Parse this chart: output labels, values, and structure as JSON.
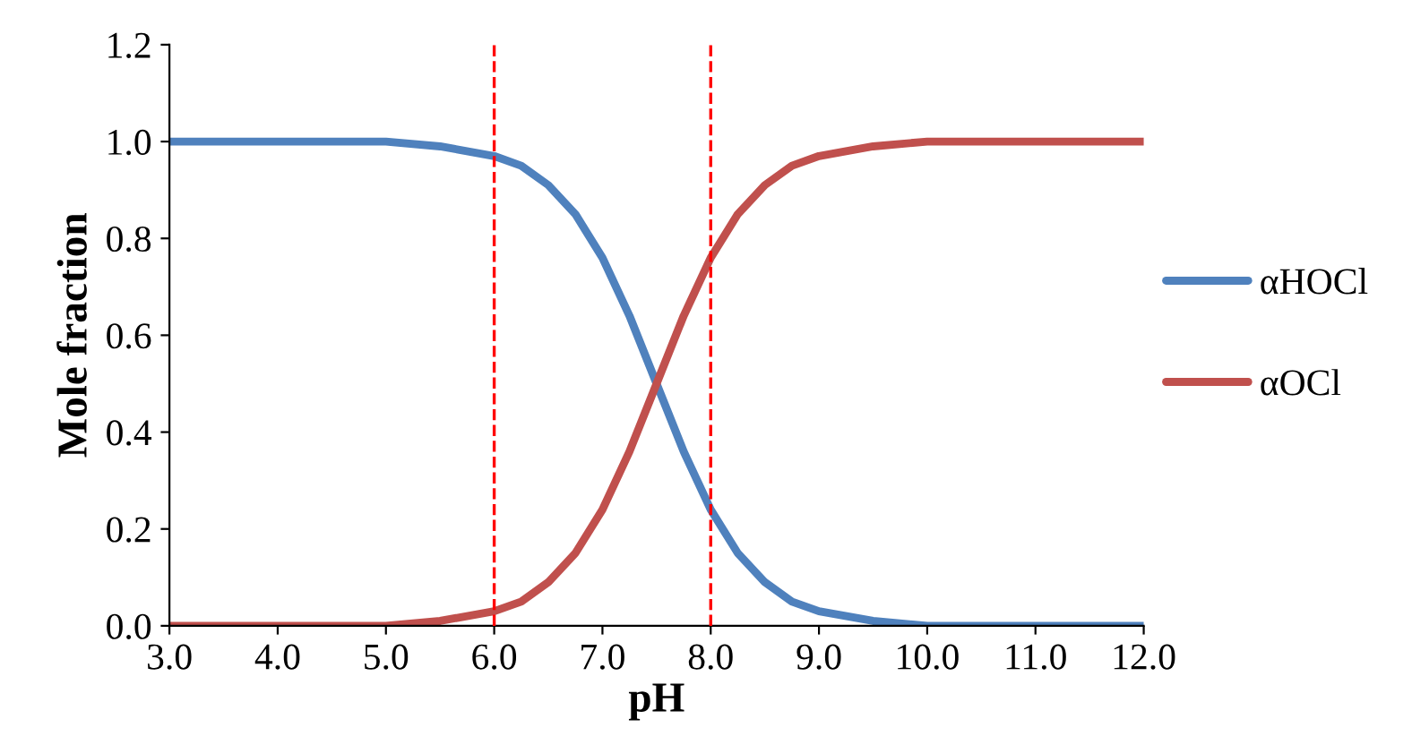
{
  "chart_data": {
    "type": "line",
    "xlabel": "pH",
    "ylabel": "Mole fraction",
    "x": [
      3,
      4,
      5,
      5.5,
      6,
      6.25,
      6.5,
      6.75,
      7,
      7.25,
      7.5,
      7.75,
      8,
      8.25,
      8.5,
      8.75,
      9,
      9.5,
      10,
      11,
      12
    ],
    "series": [
      {
        "name": "αHOCl",
        "color": "#4f81bd",
        "values": [
          1.0,
          1.0,
          1.0,
          0.99,
          0.97,
          0.95,
          0.91,
          0.85,
          0.76,
          0.64,
          0.5,
          0.36,
          0.24,
          0.15,
          0.09,
          0.05,
          0.03,
          0.01,
          0.0,
          0.0,
          0.0
        ]
      },
      {
        "name": "αOCl",
        "color": "#c0504d",
        "values": [
          0.0,
          0.0,
          0.0,
          0.01,
          0.03,
          0.05,
          0.09,
          0.15,
          0.24,
          0.36,
          0.5,
          0.64,
          0.76,
          0.85,
          0.91,
          0.95,
          0.97,
          0.99,
          1.0,
          1.0,
          1.0
        ]
      }
    ],
    "xlim": [
      3,
      12
    ],
    "ylim": [
      0,
      1.2
    ],
    "xticks": [
      {
        "value": 3,
        "label": "3.0"
      },
      {
        "value": 4,
        "label": "4.0"
      },
      {
        "value": 5,
        "label": "5.0"
      },
      {
        "value": 6,
        "label": "6.0"
      },
      {
        "value": 7,
        "label": "7.0"
      },
      {
        "value": 8,
        "label": "8.0"
      },
      {
        "value": 9,
        "label": "9.0"
      },
      {
        "value": 10,
        "label": "10.0"
      },
      {
        "value": 11,
        "label": "11.0"
      },
      {
        "value": 12,
        "label": "12.0"
      }
    ],
    "yticks": [
      {
        "value": 0,
        "label": "0.0"
      },
      {
        "value": 0.2,
        "label": "0.2"
      },
      {
        "value": 0.4,
        "label": "0.4"
      },
      {
        "value": 0.6,
        "label": "0.6"
      },
      {
        "value": 0.8,
        "label": "0.8"
      },
      {
        "value": 1.0,
        "label": "1.0"
      },
      {
        "value": 1.2,
        "label": "1.2"
      }
    ],
    "ref_lines": [
      {
        "axis": "x",
        "value": 6,
        "color": "#ff0000",
        "line_style": "dashed"
      },
      {
        "axis": "x",
        "value": 8,
        "color": "#ff0000",
        "line_style": "dashed"
      }
    ],
    "grid": false,
    "legend": "right",
    "marker": "none",
    "line_style": "solid"
  }
}
